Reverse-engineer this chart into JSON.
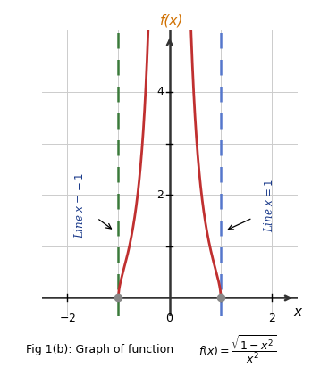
{
  "title": "f(x)",
  "xlabel": "x",
  "xlim": [
    -2.5,
    2.5
  ],
  "ylim": [
    -0.35,
    5.2
  ],
  "plot_ylim_display": 4.8,
  "asymptote_colors": [
    "#3a7a3a",
    "#5577cc"
  ],
  "curve_color": "#c03030",
  "grid_color": "#cccccc",
  "axis_color": "#333333",
  "dot_color": "#888888",
  "label_color": "#1a3a8a",
  "title_color": "#d07000",
  "line_x1_label": "Line $x=-1$",
  "line_x2_label": "Line $x=1$",
  "caption_plain": "Fig 1(b): Graph of function  ",
  "caption_math": "$f(x) = \\dfrac{\\sqrt{1-x^2}}{x^2}$"
}
